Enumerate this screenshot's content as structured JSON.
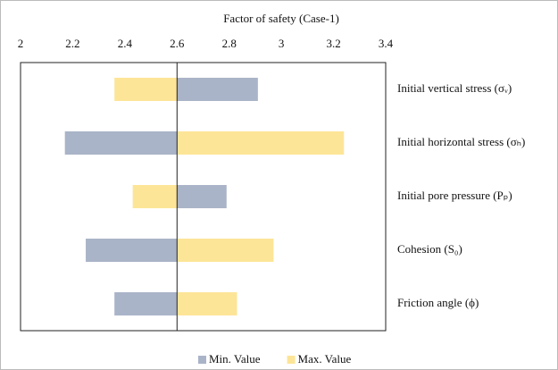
{
  "chart_data": {
    "type": "tornado",
    "title": "Factor of safety (Case-1)",
    "categories": [
      "Initial vertical stress (σᵥ)",
      "Initial horizontal stress (σₕ)",
      "Initial pore pressure (Pₚ)",
      "Cohesion (S₀)",
      "Friction angle (ϕ)"
    ],
    "base": 2.6,
    "series": [
      {
        "name": "Min. Value",
        "color": "#aab4c8",
        "values": [
          2.91,
          2.17,
          2.79,
          2.25,
          2.36
        ]
      },
      {
        "name": "Max. Value",
        "color": "#fde598",
        "values": [
          2.36,
          3.24,
          2.43,
          2.97,
          2.83
        ]
      }
    ],
    "xlim": [
      2,
      3.4
    ],
    "xticks": [
      2,
      2.2,
      2.4,
      2.6,
      2.8,
      3,
      3.2,
      3.4
    ],
    "legend": "bottom"
  }
}
